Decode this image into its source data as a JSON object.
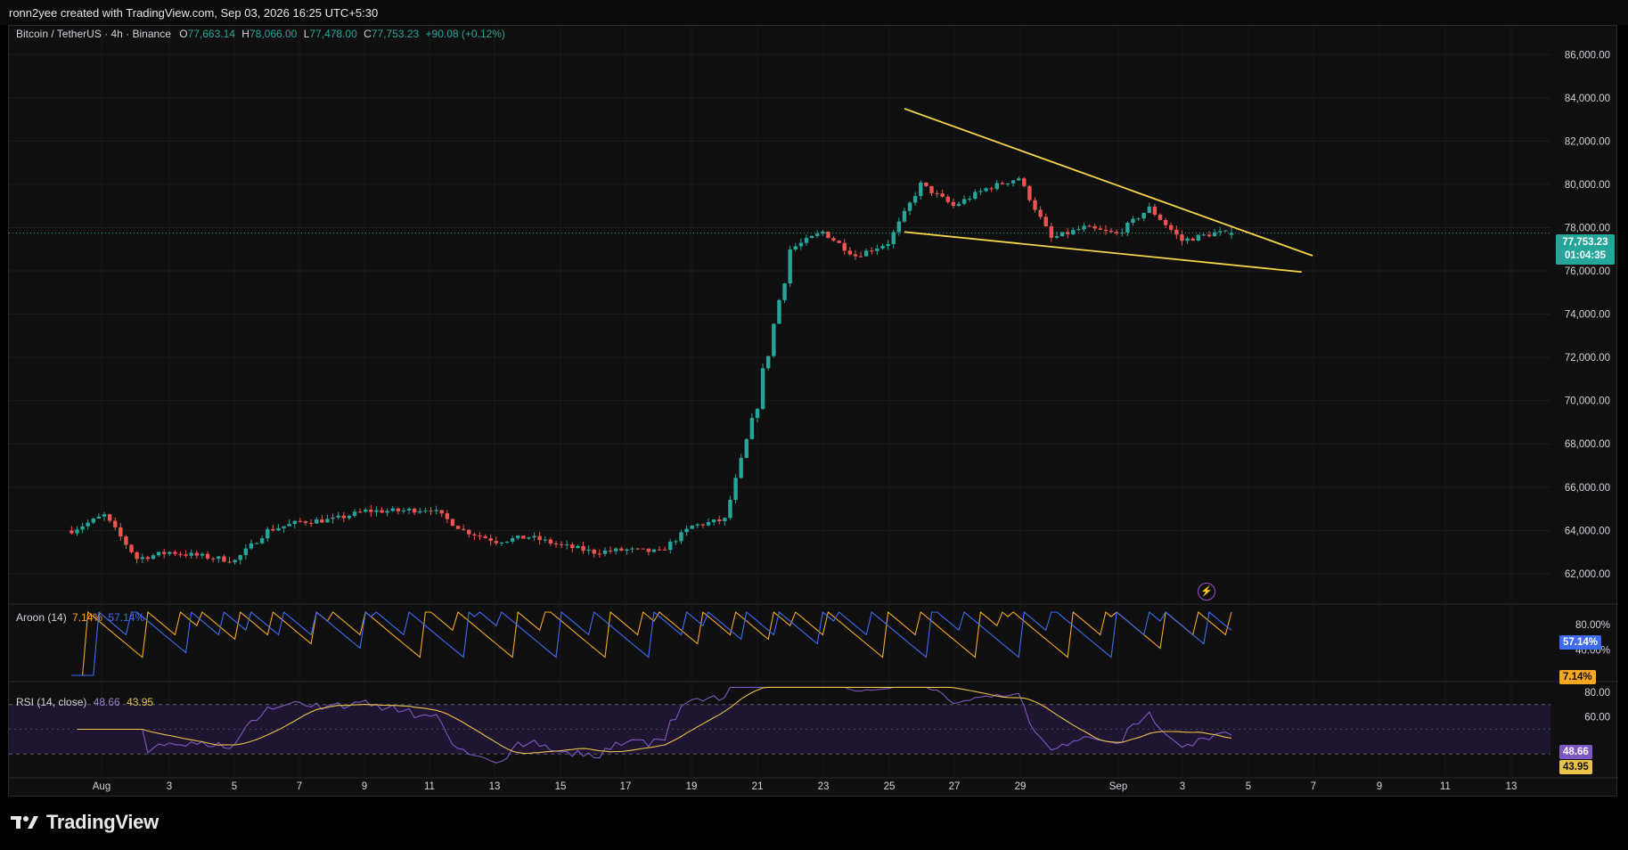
{
  "header": {
    "attribution": "ronn2yee created with TradingView.com, Sep 03, 2026 16:25 UTC+5:30"
  },
  "symbol": {
    "name": "Bitcoin / TetherUS · 4h · Binance",
    "open_label": "O",
    "open": "77,663.14",
    "high_label": "H",
    "high": "78,066.00",
    "low_label": "L",
    "low": "77,478.00",
    "close_label": "C",
    "close": "77,753.23",
    "change": "+90.08 (+0.12%)"
  },
  "price_badge": {
    "price": "77,753.23",
    "countdown": "01:04:35"
  },
  "price_axis": {
    "labels": [
      "86,000.00",
      "84,000.00",
      "82,000.00",
      "80,000.00",
      "78,000.00",
      "76,000.00",
      "74,000.00",
      "72,000.00",
      "70,000.00",
      "68,000.00",
      "66,000.00",
      "64,000.00",
      "62,000.00"
    ]
  },
  "aroon": {
    "label": "Aroon (14)",
    "up_value": "7.14%",
    "down_value": "57.14%",
    "axis_labels": [
      "80.00%",
      "40.00%"
    ],
    "badge_down": "57.14%",
    "badge_up": "7.14%"
  },
  "rsi": {
    "label": "RSI (14, close)",
    "rsi_value": "48.66",
    "ma_value": "43.95",
    "axis_labels": [
      "80.00",
      "60.00"
    ],
    "badge_rsi": "48.66",
    "badge_ma": "43.95"
  },
  "time_axis": {
    "labels": [
      "Aug",
      "3",
      "5",
      "7",
      "9",
      "11",
      "13",
      "15",
      "17",
      "19",
      "21",
      "23",
      "25",
      "27",
      "29",
      "Sep",
      "3",
      "5",
      "7",
      "9",
      "11",
      "13"
    ]
  },
  "footer": {
    "logo_text": "TradingView"
  },
  "colors": {
    "up": "#26a69a",
    "down": "#ef5350",
    "trendline": "#f5d547",
    "aroon_up": "#f5a623",
    "aroon_down": "#3d6cf0",
    "rsi_line": "#7e57c2",
    "rsi_ma": "#e9c24a",
    "rsi_band": "#1e1530"
  },
  "chart_data": [
    {
      "type": "candlestick",
      "title": "Bitcoin / TetherUS · 4h · Binance",
      "interval": "4h",
      "x_tick_labels": [
        "Aug",
        "3",
        "5",
        "7",
        "9",
        "11",
        "13",
        "15",
        "17",
        "19",
        "21",
        "23",
        "25",
        "27",
        "29",
        "Sep",
        "3",
        "5",
        "7",
        "9",
        "11",
        "13"
      ],
      "ylim": [
        60800,
        87000
      ],
      "y_tick_labels": [
        "62,000.00",
        "64,000.00",
        "66,000.00",
        "68,000.00",
        "70,000.00",
        "72,000.00",
        "74,000.00",
        "76,000.00",
        "78,000.00",
        "80,000.00",
        "82,000.00",
        "84,000.00",
        "86,000.00"
      ],
      "last": {
        "open": 77663.14,
        "high": 78066.0,
        "low": 77478.0,
        "close": 77753.23,
        "change": 90.08,
        "change_pct": 0.12
      },
      "close_path": [
        {
          "t": "Jul 30",
          "close": 64000
        },
        {
          "t": "Jul 31",
          "close": 64700
        },
        {
          "t": "Aug 1",
          "close": 62700
        },
        {
          "t": "Aug 2",
          "close": 63000
        },
        {
          "t": "Aug 3",
          "close": 62800
        },
        {
          "t": "Aug 4",
          "close": 62600
        },
        {
          "t": "Aug 5",
          "close": 64000
        },
        {
          "t": "Aug 6",
          "close": 64400
        },
        {
          "t": "Aug 7",
          "close": 64500
        },
        {
          "t": "Aug 8",
          "close": 64900
        },
        {
          "t": "Aug 9",
          "close": 64900
        },
        {
          "t": "Aug 10",
          "close": 65000
        },
        {
          "t": "Aug 11",
          "close": 64000
        },
        {
          "t": "Aug 12",
          "close": 63500
        },
        {
          "t": "Aug 13",
          "close": 63700
        },
        {
          "t": "Aug 14",
          "close": 63300
        },
        {
          "t": "Aug 15",
          "close": 63000
        },
        {
          "t": "Aug 16",
          "close": 63100
        },
        {
          "t": "Aug 17",
          "close": 63000
        },
        {
          "t": "Aug 18",
          "close": 64200
        },
        {
          "t": "Aug 19",
          "close": 64500
        },
        {
          "t": "Aug 20",
          "close": 70000
        },
        {
          "t": "Aug 21",
          "close": 77000
        },
        {
          "t": "Aug 22",
          "close": 77800
        },
        {
          "t": "Aug 23",
          "close": 76700
        },
        {
          "t": "Aug 24",
          "close": 77300
        },
        {
          "t": "Aug 25",
          "close": 80000
        },
        {
          "t": "Aug 26",
          "close": 79000
        },
        {
          "t": "Aug 27",
          "close": 79800
        },
        {
          "t": "Aug 28",
          "close": 80300
        },
        {
          "t": "Aug 29",
          "close": 77500
        },
        {
          "t": "Aug 30",
          "close": 78000
        },
        {
          "t": "Aug 31",
          "close": 77700
        },
        {
          "t": "Sep 1",
          "close": 78900
        },
        {
          "t": "Sep 2",
          "close": 77400
        },
        {
          "t": "Sep 3",
          "close": 77753
        }
      ],
      "annotations": [
        {
          "type": "trendline",
          "from": {
            "t": "Aug 24 12:00",
            "price": 83500
          },
          "to": {
            "t": "Sep 6",
            "price": 76700
          }
        },
        {
          "type": "trendline",
          "from": {
            "t": "Aug 24 12:00",
            "price": 77800
          },
          "to": {
            "t": "Sep 5 16:00",
            "price": 75950
          }
        }
      ]
    },
    {
      "type": "line",
      "title": "Aroon (14)",
      "ylim": [
        0,
        100
      ],
      "y_tick_labels": [
        "80.00%",
        "40.00%"
      ],
      "series": [
        {
          "name": "Aroon Up",
          "last": 7.14
        },
        {
          "name": "Aroon Down",
          "last": 57.14
        }
      ]
    },
    {
      "type": "line",
      "title": "RSI (14, close)",
      "ylim": [
        15,
        85
      ],
      "y_tick_labels": [
        "80.00",
        "60.00"
      ],
      "series": [
        {
          "name": "RSI",
          "last": 48.66
        },
        {
          "name": "RSI-based MA",
          "last": 43.95
        }
      ]
    }
  ]
}
